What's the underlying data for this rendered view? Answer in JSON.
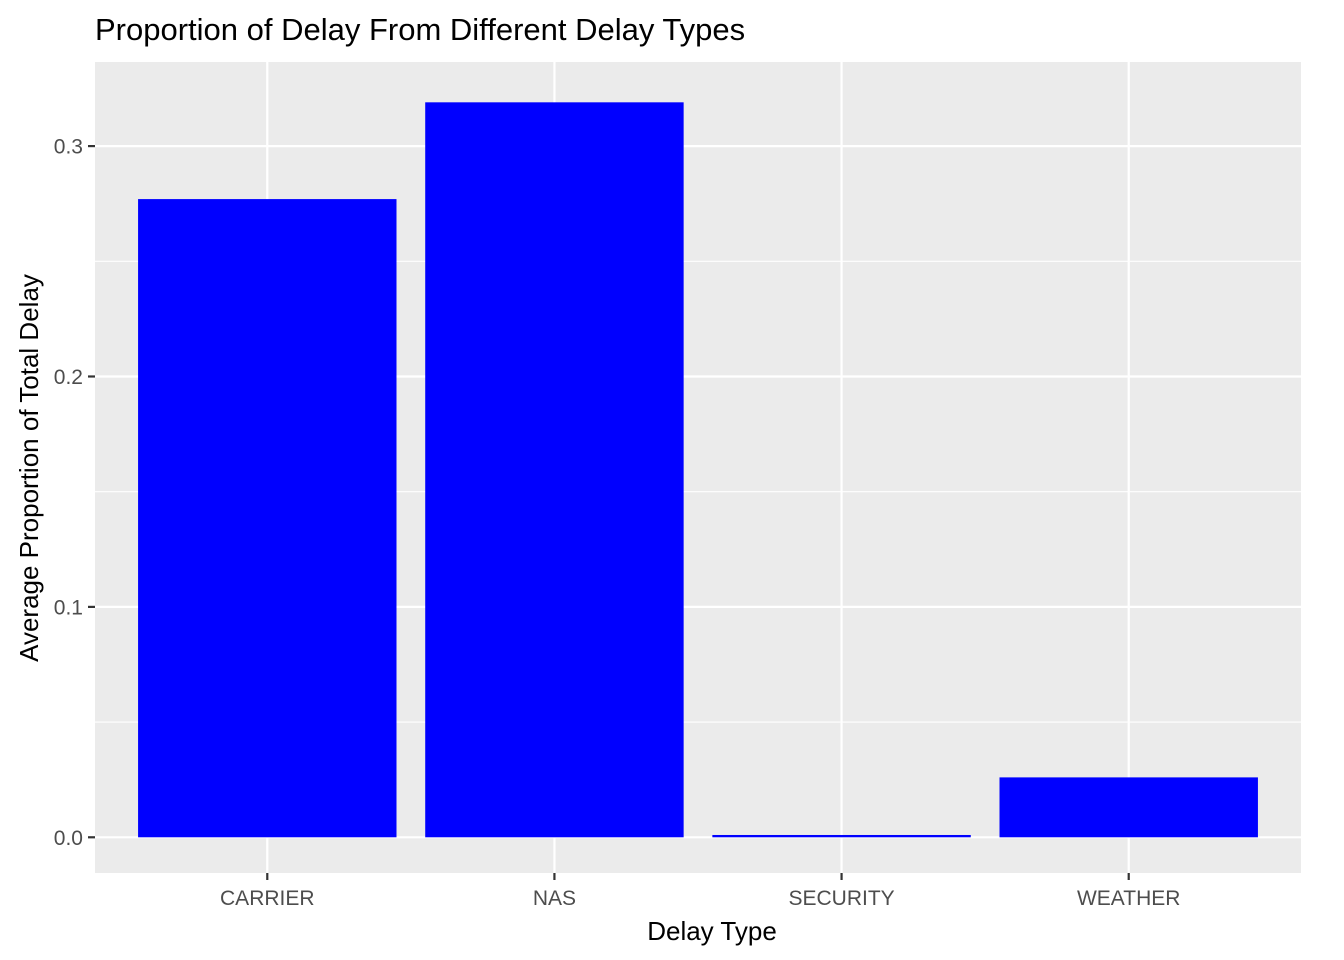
{
  "chart_data": {
    "type": "bar",
    "title": "Proportion of Delay From Different Delay Types",
    "xlabel": "Delay Type",
    "ylabel": "Average Proportion of Total Delay",
    "categories": [
      "CARRIER",
      "NAS",
      "SECURITY",
      "WEATHER"
    ],
    "values": [
      0.277,
      0.319,
      0.001,
      0.026
    ],
    "ylim": [
      -0.0155,
      0.3365
    ],
    "yticks": [
      0.0,
      0.1,
      0.2,
      0.3
    ],
    "ytick_labels": [
      "0.0",
      "0.1",
      "0.2",
      "0.3"
    ],
    "grid": true,
    "legend": "none",
    "bar_color": "#0000FF",
    "panel_background": "#EBEBEB",
    "grid_color": "#FFFFFF"
  }
}
